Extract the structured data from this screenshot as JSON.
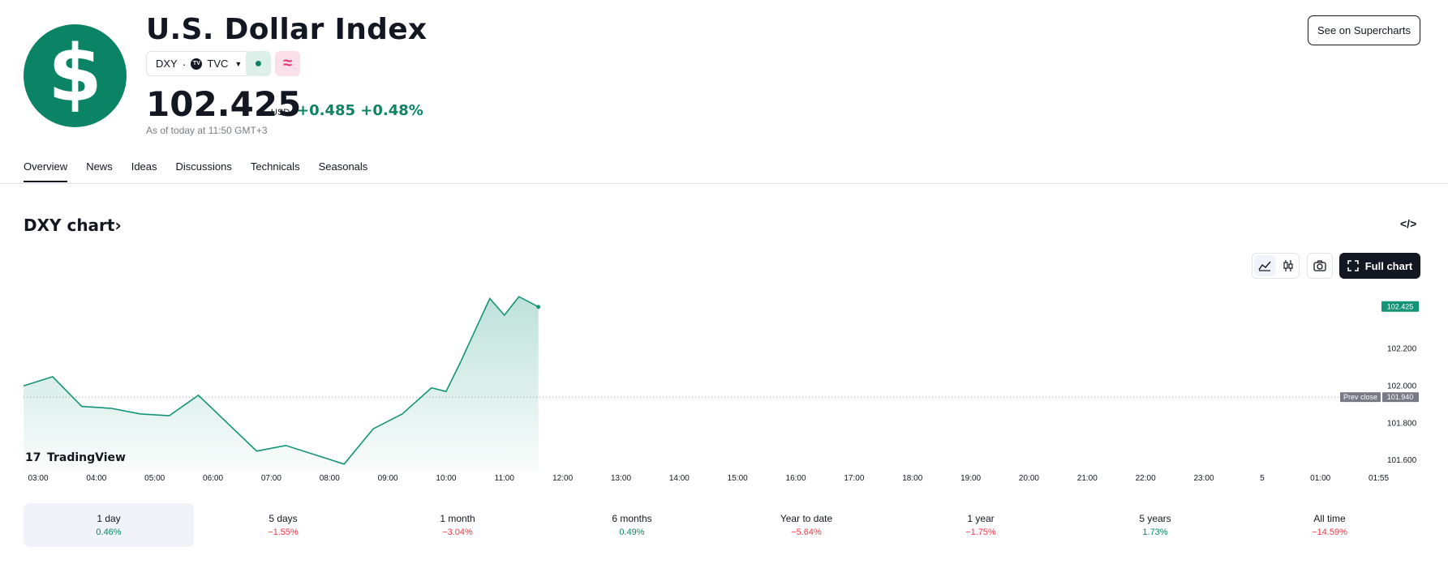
{
  "header": {
    "logo_symbol": "$",
    "title": "U.S. Dollar Index",
    "ticker": "DXY",
    "exchange": "TVC",
    "exchange_badge": "TV",
    "market_status_icon": "market-open-dot",
    "delay_icon": "approx-icon",
    "price": "102.425",
    "currency": "USD",
    "change": "+0.485 +0.48%",
    "as_of": "As of today at 11:50 GMT+3",
    "supercharts_button": "See on Supercharts"
  },
  "tabs": [
    {
      "label": "Overview",
      "active": true
    },
    {
      "label": "News",
      "active": false
    },
    {
      "label": "Ideas",
      "active": false
    },
    {
      "label": "Discussions",
      "active": false
    },
    {
      "label": "Technicals",
      "active": false
    },
    {
      "label": "Seasonals",
      "active": false
    }
  ],
  "chart_section": {
    "title": "DXY chart",
    "title_arrow": "›",
    "full_chart_button": "Full chart",
    "watermark": "TradingView",
    "watermark_badge": "17"
  },
  "chart_data": {
    "type": "area",
    "x": [
      "03:00",
      "03:30",
      "04:00",
      "04:30",
      "05:00",
      "05:30",
      "06:00",
      "06:30",
      "07:00",
      "07:30",
      "08:00",
      "08:30",
      "09:00",
      "09:30",
      "10:00",
      "10:15",
      "10:30",
      "10:45",
      "11:00",
      "11:15",
      "11:30",
      "11:50"
    ],
    "values": [
      102.0,
      102.05,
      101.89,
      101.88,
      101.85,
      101.84,
      101.95,
      101.8,
      101.65,
      101.68,
      101.63,
      101.58,
      101.77,
      101.85,
      101.99,
      101.97,
      102.13,
      102.3,
      102.47,
      102.38,
      102.48,
      102.425
    ],
    "x_ticks": [
      "03:00",
      "04:00",
      "05:00",
      "06:00",
      "07:00",
      "08:00",
      "09:00",
      "10:00",
      "11:00",
      "12:00",
      "13:00",
      "14:00",
      "15:00",
      "16:00",
      "17:00",
      "18:00",
      "19:00",
      "20:00",
      "21:00",
      "22:00",
      "23:00",
      "5",
      "01:00",
      "01:55"
    ],
    "y_ticks": [
      "102.200",
      "102.000",
      "101.800",
      "101.600"
    ],
    "ylim": [
      101.54,
      102.55
    ],
    "prev_close": 101.94,
    "prev_close_label": "Prev close",
    "prev_close_value": "101.940",
    "last_value_label": "102.425",
    "line_color": "#149477",
    "fill_color": "#149477"
  },
  "periods": [
    {
      "label": "1 day",
      "value": "0.46%",
      "sign": "pos",
      "active": true
    },
    {
      "label": "5 days",
      "value": "−1.55%",
      "sign": "neg",
      "active": false
    },
    {
      "label": "1 month",
      "value": "−3.04%",
      "sign": "neg",
      "active": false
    },
    {
      "label": "6 months",
      "value": "0.49%",
      "sign": "pos",
      "active": false
    },
    {
      "label": "Year to date",
      "value": "−5.64%",
      "sign": "neg",
      "active": false
    },
    {
      "label": "1 year",
      "value": "−1.75%",
      "sign": "neg",
      "active": false
    },
    {
      "label": "5 years",
      "value": "1.73%",
      "sign": "pos",
      "active": false
    },
    {
      "label": "All time",
      "value": "−14.59%",
      "sign": "neg",
      "active": false
    }
  ]
}
